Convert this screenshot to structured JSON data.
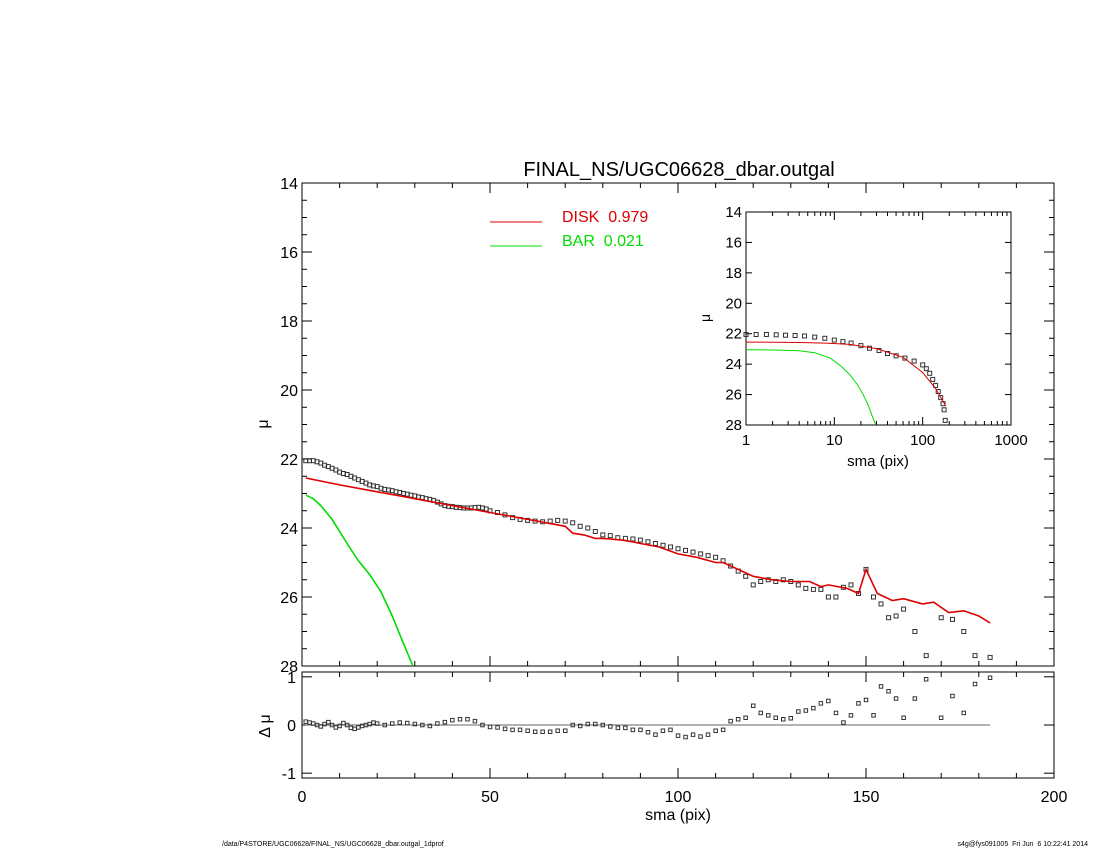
{
  "chart_data": [
    {
      "panel": "main",
      "type": "scatter",
      "title": "FINAL_NS/UGC06628_dbar.outgal",
      "xlabel": "",
      "ylabel": "μ",
      "xlim": [
        0,
        200
      ],
      "ylim": [
        28,
        14
      ],
      "y_inverted": true,
      "x_ticks": [
        0,
        50,
        100,
        150,
        200
      ],
      "y_ticks": [
        14,
        16,
        18,
        20,
        22,
        24,
        26,
        28
      ],
      "legend_position": "top-center",
      "series": [
        {
          "name": "data",
          "marker": "open-square",
          "color": "#333333",
          "x": [
            1,
            2,
            3,
            4,
            5,
            6,
            7,
            8,
            9,
            10,
            11,
            12,
            13,
            14,
            15,
            16,
            17,
            18,
            19,
            20,
            21,
            22,
            23,
            24,
            25,
            26,
            27,
            28,
            29,
            30,
            31,
            32,
            33,
            34,
            35,
            36,
            37,
            38,
            39,
            40,
            41,
            42,
            43,
            44,
            45,
            46,
            47,
            48,
            49,
            50,
            52,
            54,
            56,
            58,
            60,
            62,
            64,
            66,
            68,
            70,
            72,
            74,
            76,
            78,
            80,
            82,
            84,
            86,
            88,
            90,
            92,
            94,
            96,
            98,
            100,
            102,
            104,
            106,
            108,
            110,
            112,
            114,
            116,
            118,
            120,
            122,
            124,
            126,
            128,
            130,
            132,
            134,
            136,
            138,
            140,
            142,
            144,
            146,
            148,
            150,
            152,
            154,
            156,
            158,
            160,
            163,
            166,
            170,
            173,
            176,
            179,
            183
          ],
          "y": [
            22.05,
            22.05,
            22.05,
            22.08,
            22.12,
            22.18,
            22.22,
            22.27,
            22.32,
            22.38,
            22.42,
            22.45,
            22.5,
            22.55,
            22.6,
            22.65,
            22.7,
            22.75,
            22.78,
            22.8,
            22.85,
            22.88,
            22.9,
            22.92,
            22.95,
            22.97,
            23.0,
            23.02,
            23.05,
            23.07,
            23.1,
            23.12,
            23.15,
            23.17,
            23.2,
            23.25,
            23.3,
            23.35,
            23.37,
            23.38,
            23.4,
            23.41,
            23.42,
            23.42,
            23.42,
            23.41,
            23.4,
            23.42,
            23.45,
            23.5,
            23.55,
            23.62,
            23.7,
            23.75,
            23.78,
            23.8,
            23.82,
            23.8,
            23.78,
            23.8,
            23.85,
            23.95,
            24.0,
            24.1,
            24.2,
            24.22,
            24.28,
            24.3,
            24.32,
            24.35,
            24.4,
            24.45,
            24.5,
            24.55,
            24.6,
            24.65,
            24.7,
            24.75,
            24.8,
            24.85,
            24.95,
            25.1,
            25.25,
            25.4,
            25.65,
            25.55,
            25.5,
            25.55,
            25.5,
            25.55,
            25.65,
            25.75,
            25.78,
            25.78,
            26.0,
            26.0,
            25.72,
            25.65,
            25.9,
            25.2,
            26.0,
            26.2,
            26.6,
            26.55,
            26.35,
            27.0,
            27.7,
            26.6,
            26.65,
            27.0,
            27.7,
            27.75
          ]
        },
        {
          "name": "DISK  0.979",
          "marker": "line",
          "color": "#dd0000",
          "x": [
            1,
            10,
            20,
            30,
            40,
            50,
            55,
            60,
            65,
            70,
            72,
            75,
            78,
            80,
            82,
            85,
            88,
            90,
            95,
            100,
            105,
            110,
            112,
            115,
            118,
            120,
            125,
            130,
            135,
            138,
            140,
            145,
            148,
            150,
            153,
            157,
            160,
            165,
            168,
            172,
            176,
            180,
            183
          ],
          "y": [
            22.55,
            22.75,
            22.95,
            23.15,
            23.35,
            23.55,
            23.65,
            23.75,
            23.85,
            23.95,
            24.15,
            24.2,
            24.3,
            24.3,
            24.32,
            24.35,
            24.4,
            24.45,
            24.55,
            24.75,
            24.85,
            25.0,
            25.0,
            25.15,
            25.3,
            25.4,
            25.5,
            25.55,
            25.55,
            25.7,
            25.65,
            25.75,
            25.9,
            25.2,
            25.9,
            26.1,
            26.05,
            26.2,
            26.15,
            26.45,
            26.4,
            26.55,
            26.75
          ]
        },
        {
          "name": "BAR  0.021",
          "marker": "line",
          "color": "#00dd00",
          "x": [
            1,
            3,
            5,
            8,
            12,
            15,
            18,
            21,
            24,
            27,
            29.5
          ],
          "y": [
            23.05,
            23.15,
            23.35,
            23.75,
            24.45,
            24.95,
            25.35,
            25.85,
            26.55,
            27.35,
            28.0
          ]
        }
      ]
    },
    {
      "panel": "inset",
      "type": "scatter",
      "xlabel": "sma (pix)",
      "ylabel": "μ",
      "x_scale": "log",
      "xlim": [
        1,
        1000
      ],
      "ylim": [
        28,
        14
      ],
      "y_inverted": true,
      "x_ticks": [
        "1",
        "10",
        "100",
        "1000"
      ],
      "y_ticks": [
        14,
        16,
        18,
        20,
        22,
        24,
        26,
        28
      ],
      "series": [
        {
          "name": "data",
          "marker": "open-square",
          "color": "#333333",
          "x": [
            1,
            1.3,
            1.7,
            2.2,
            2.8,
            3.6,
            4.6,
            6,
            7.8,
            10,
            12.5,
            15.5,
            20,
            25,
            32,
            40,
            50,
            63,
            80,
            100,
            110,
            120,
            130,
            140,
            150,
            160,
            170,
            175,
            180
          ],
          "y": [
            22.05,
            22.05,
            22.05,
            22.07,
            22.1,
            22.12,
            22.15,
            22.22,
            22.3,
            22.42,
            22.52,
            22.62,
            22.78,
            22.95,
            23.1,
            23.3,
            23.45,
            23.6,
            23.8,
            24.05,
            24.3,
            24.6,
            25.0,
            25.4,
            25.8,
            26.2,
            26.6,
            27.0,
            27.7
          ]
        },
        {
          "name": "disk",
          "marker": "line",
          "color": "#dd0000",
          "x": [
            1,
            2,
            4,
            8,
            15,
            30,
            60,
            100,
            140,
            183
          ],
          "y": [
            22.55,
            22.56,
            22.58,
            22.62,
            22.7,
            22.98,
            23.55,
            24.55,
            25.6,
            26.75
          ]
        },
        {
          "name": "bar",
          "marker": "line",
          "color": "#00dd00",
          "x": [
            1,
            2,
            4,
            6,
            9,
            12,
            15,
            18,
            21,
            24,
            27,
            29.5
          ],
          "y": [
            23.05,
            23.07,
            23.12,
            23.25,
            23.6,
            24.15,
            24.7,
            25.3,
            25.95,
            26.65,
            27.45,
            28.0
          ]
        }
      ]
    },
    {
      "panel": "residual",
      "type": "scatter",
      "xlabel": "sma (pix)",
      "ylabel": "Δ μ",
      "xlim": [
        0,
        200
      ],
      "ylim": [
        -1.1,
        1.1
      ],
      "x_ticks": [
        0,
        50,
        100,
        150,
        200
      ],
      "y_ticks": [
        -1,
        0,
        1
      ],
      "series": [
        {
          "name": "residual",
          "marker": "open-square",
          "color": "#333333",
          "x": [
            1,
            2,
            3,
            4,
            5,
            6,
            7,
            8,
            9,
            10,
            11,
            12,
            13,
            14,
            15,
            16,
            17,
            18,
            19,
            20,
            22,
            24,
            26,
            28,
            30,
            32,
            34,
            36,
            38,
            40,
            42,
            44,
            46,
            48,
            50,
            52,
            54,
            56,
            58,
            60,
            62,
            64,
            66,
            68,
            70,
            72,
            74,
            76,
            78,
            80,
            82,
            84,
            86,
            88,
            90,
            92,
            94,
            96,
            98,
            100,
            102,
            104,
            106,
            108,
            110,
            112,
            114,
            116,
            118,
            120,
            122,
            124,
            126,
            128,
            130,
            132,
            134,
            136,
            138,
            140,
            142,
            144,
            146,
            148,
            150,
            152,
            154,
            156,
            158,
            160,
            163,
            166,
            170,
            173,
            176,
            179,
            183
          ],
          "y": [
            0.07,
            0.05,
            0.03,
            0.0,
            -0.03,
            0.02,
            0.06,
            0.0,
            -0.05,
            -0.02,
            0.04,
            0.0,
            -0.06,
            -0.08,
            -0.05,
            -0.02,
            0.0,
            0.02,
            0.05,
            0.03,
            0.0,
            0.03,
            0.05,
            0.04,
            0.02,
            0.0,
            -0.02,
            0.03,
            0.06,
            0.1,
            0.12,
            0.12,
            0.08,
            0.0,
            -0.04,
            -0.05,
            -0.08,
            -0.1,
            -0.1,
            -0.12,
            -0.14,
            -0.14,
            -0.14,
            -0.12,
            -0.12,
            0.0,
            -0.02,
            0.02,
            0.02,
            0.0,
            -0.03,
            -0.06,
            -0.06,
            -0.1,
            -0.1,
            -0.15,
            -0.2,
            -0.12,
            -0.1,
            -0.22,
            -0.25,
            -0.2,
            -0.24,
            -0.2,
            -0.12,
            -0.1,
            0.08,
            0.12,
            0.15,
            0.4,
            0.25,
            0.2,
            0.15,
            0.12,
            0.14,
            0.28,
            0.3,
            0.35,
            0.45,
            0.5,
            0.25,
            0.05,
            0.2,
            0.45,
            0.52,
            0.2,
            0.8,
            0.7,
            0.55,
            0.15,
            0.55,
            0.95,
            0.15,
            0.6,
            0.25,
            0.85,
            0.98
          ],
          "baseline": 0
        }
      ]
    }
  ],
  "legend": {
    "disk_label": "DISK  0.979",
    "bar_label": "BAR  0.021",
    "disk_color": "#dd0000",
    "bar_color": "#00dd00"
  },
  "footer": {
    "left": "/data/P4STORE/UGC06628/FINAL_NS/UGC06628_dbar.outgal_1dprof",
    "right": "s4g@fys091005  Fri Jun  6 10:22:41 2014"
  }
}
